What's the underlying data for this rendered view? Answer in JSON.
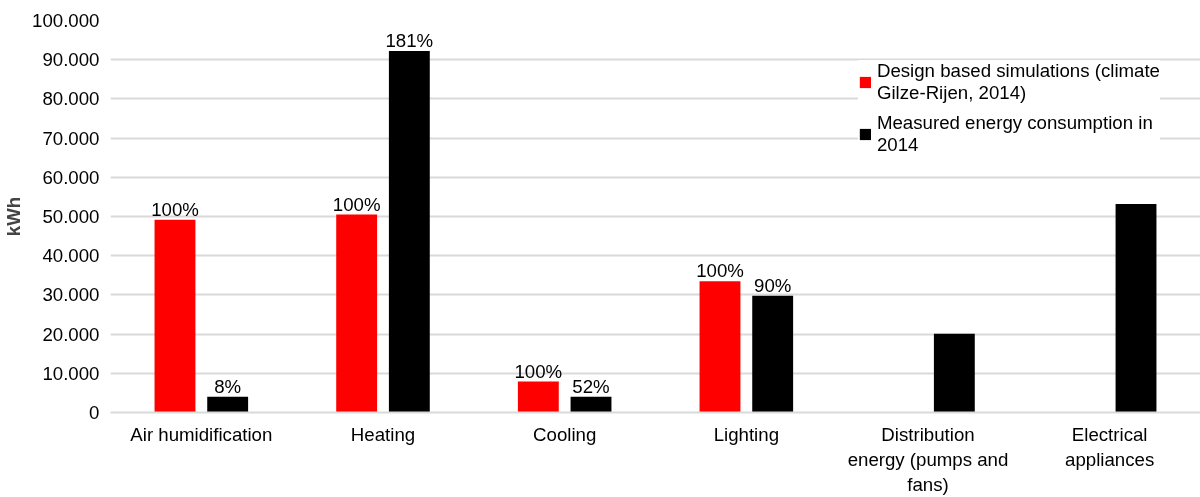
{
  "chart_data": {
    "type": "bar",
    "ylabel": "kWh",
    "categories": [
      "Air humidification",
      "Heating",
      "Cooling",
      "Lighting",
      "Distribution energy (pumps and fans)",
      "Electrical appliances"
    ],
    "series": [
      {
        "name": "Design based simulations (climate Gilze-Rijen, 2014)",
        "color": "#ff0000",
        "values": [
          49200,
          50500,
          7900,
          33500,
          null,
          null
        ]
      },
      {
        "name": "Measured energy consumption in 2014",
        "color": "#000000",
        "values": [
          4000,
          92200,
          4000,
          29800,
          20100,
          53200
        ]
      }
    ],
    "annotations": [
      "100%",
      "8%",
      "100%",
      "181%",
      "100%",
      "52%",
      "100%",
      "90%"
    ],
    "ylim": [
      0,
      100000
    ],
    "yticks": [
      {
        "value": 0,
        "label": "0"
      },
      {
        "value": 10000,
        "label": "10.000"
      },
      {
        "value": 20000,
        "label": "20.000"
      },
      {
        "value": 30000,
        "label": "30.000"
      },
      {
        "value": 40000,
        "label": "40.000"
      },
      {
        "value": 50000,
        "label": "50.000"
      },
      {
        "value": 60000,
        "label": "60.000"
      },
      {
        "value": 70000,
        "label": "70.000"
      },
      {
        "value": 80000,
        "label": "80.000"
      },
      {
        "value": 90000,
        "label": "90.000"
      },
      {
        "value": 100000,
        "label": "100.000"
      }
    ],
    "grid": "y",
    "legend": "top right"
  }
}
